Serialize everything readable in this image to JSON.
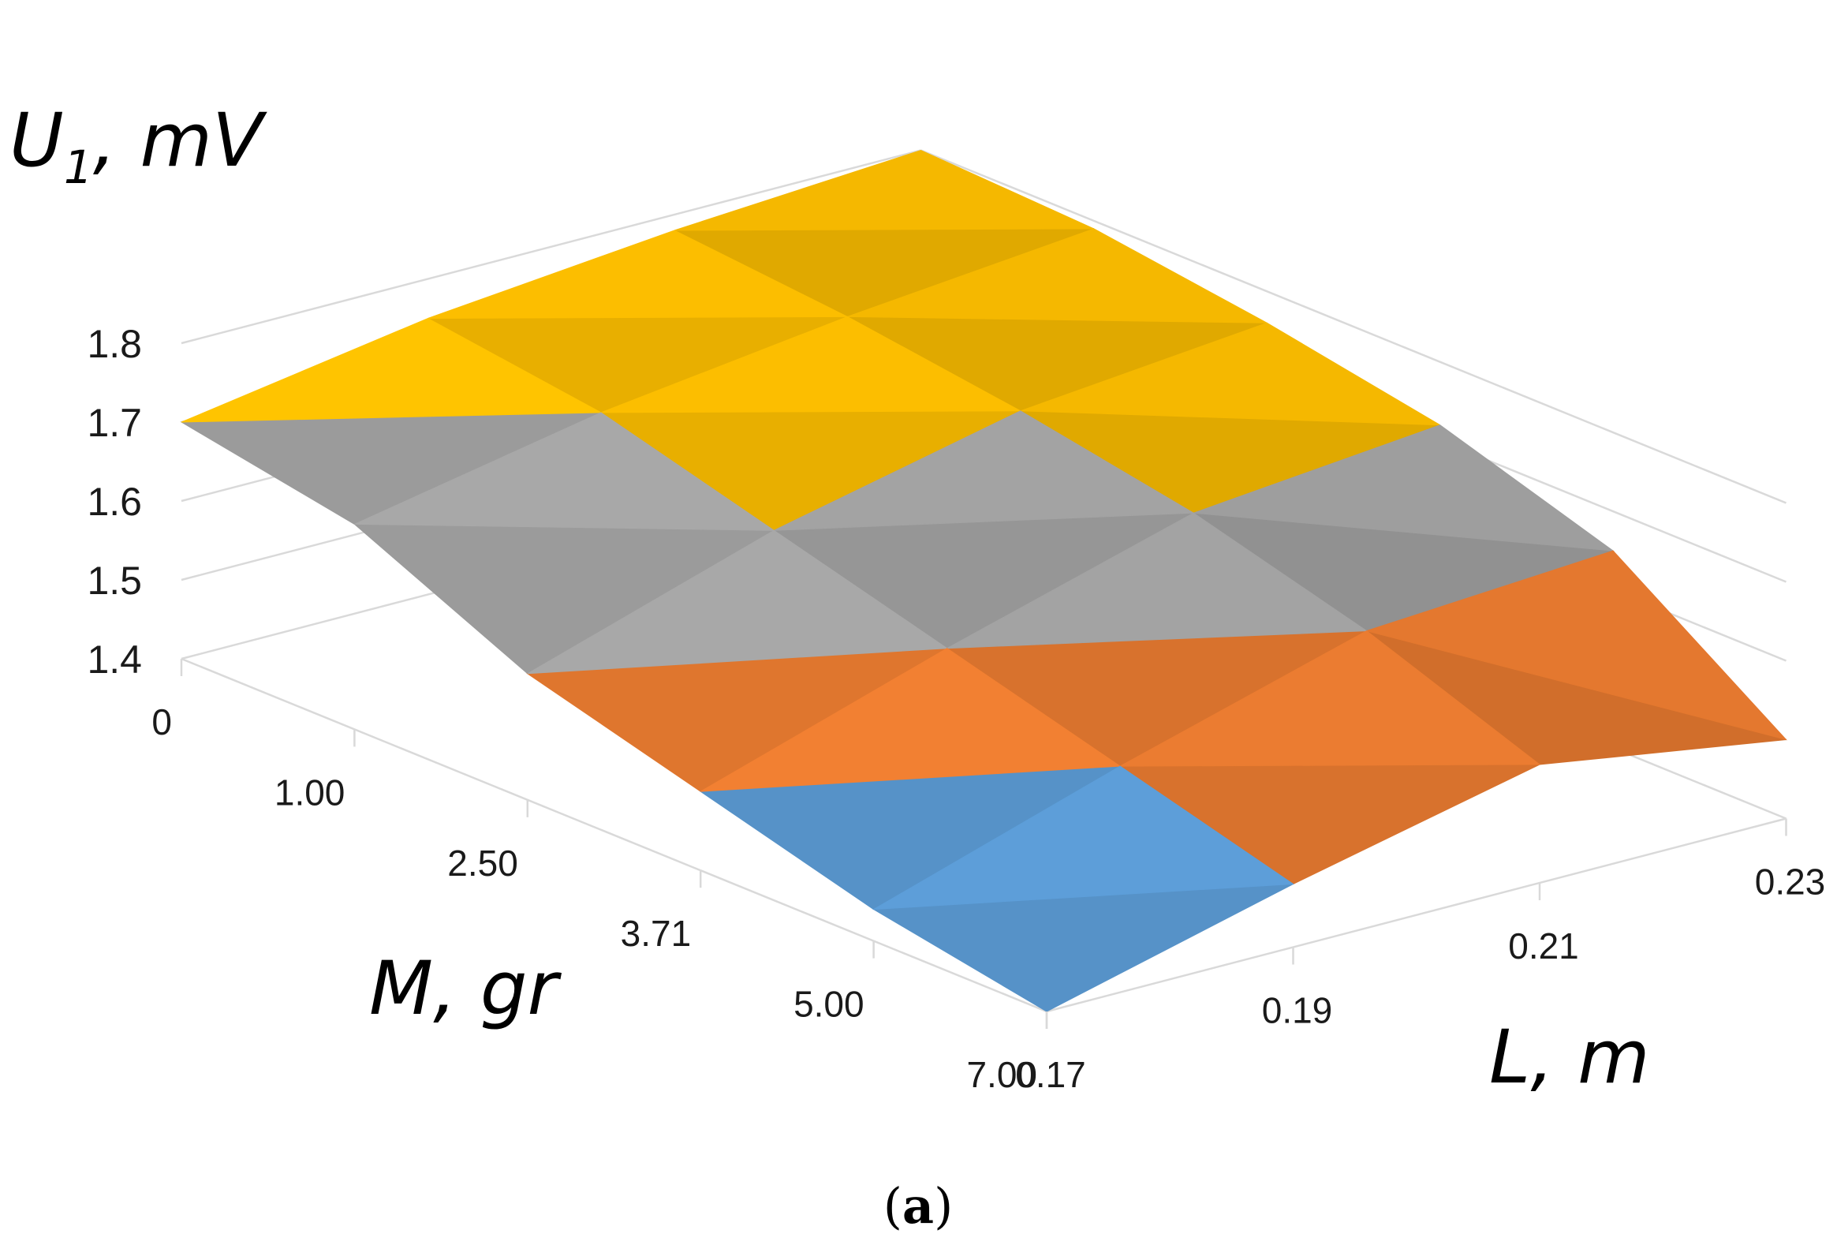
{
  "chart_data": {
    "type": "surface",
    "x_axis": {
      "label": "M, gr",
      "ticks": [
        "0",
        "1.00",
        "2.50",
        "3.71",
        "5.00",
        "7.00"
      ],
      "values": [
        0,
        1.0,
        2.5,
        3.71,
        5.0,
        7.0
      ]
    },
    "y_axis": {
      "label": "L, m",
      "ticks": [
        "0.17",
        "0.19",
        "0.21",
        "0.23"
      ],
      "values": [
        0.17,
        0.19,
        0.21,
        0.23
      ]
    },
    "z_axis": {
      "label_main": "U",
      "label_sub": "1",
      "label_unit": ", mV",
      "ticks": [
        "1.4",
        "1.5",
        "1.6",
        "1.7",
        "1.8"
      ],
      "range": [
        1.4,
        1.8
      ]
    },
    "z_values": [
      [
        1.7,
        1.75,
        1.78,
        1.8
      ],
      [
        1.66,
        1.72,
        1.76,
        1.79
      ],
      [
        1.56,
        1.66,
        1.73,
        1.76
      ],
      [
        1.5,
        1.6,
        1.69,
        1.72
      ],
      [
        1.44,
        1.54,
        1.63,
        1.65
      ],
      [
        1.4,
        1.48,
        1.55,
        1.5
      ]
    ],
    "bands": [
      {
        "range": "1.4-1.5",
        "color": "#5b9bd5"
      },
      {
        "range": "1.5-1.6",
        "color": "#ed7d31"
      },
      {
        "range": "1.6-1.7",
        "color": "#a5a5a5"
      },
      {
        "range": "1.7-1.8",
        "color": "#ffc000"
      }
    ],
    "grid": true
  },
  "caption": {
    "open": "(",
    "letter": "a",
    "close": ")"
  }
}
